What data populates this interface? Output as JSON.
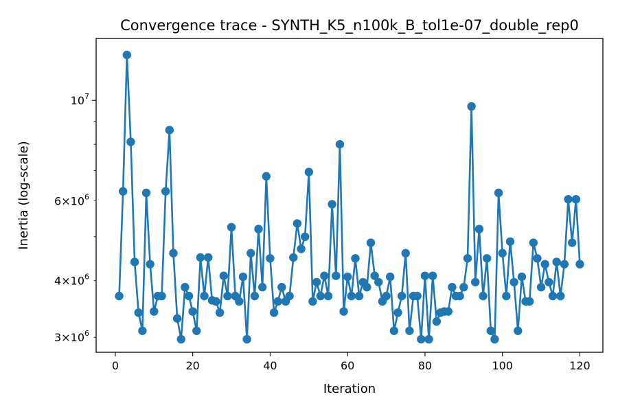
{
  "chart_data": {
    "type": "line",
    "title": "Convergence trace - SYNTH_K5_n100k_B_tol1e-07_double_rep0",
    "xlabel": "Iteration",
    "ylabel": "Inertia (log-scale)",
    "yscale": "log",
    "xlim": [
      -4.95,
      125.95
    ],
    "ylim": [
      2780000,
      13700000
    ],
    "x_ticks": [
      0,
      20,
      40,
      60,
      80,
      100,
      120
    ],
    "x_tick_labels": [
      "0",
      "20",
      "40",
      "60",
      "80",
      "100",
      "120"
    ],
    "y_major_ticks": [
      10000000
    ],
    "y_major_tick_labels": [
      "10^7"
    ],
    "y_minor_ticks": [
      3000000,
      4000000,
      5000000,
      6000000,
      7000000,
      8000000,
      9000000
    ],
    "y_minor_tick_labels": [
      {
        "value": 3000000,
        "label": "3×10^6"
      },
      {
        "value": 4000000,
        "label": "4×10^6"
      },
      {
        "value": 6000000,
        "label": "6×10^6"
      }
    ],
    "grid": false,
    "legend": "none",
    "color": "#1f77b4",
    "marker": "circle",
    "series": [
      {
        "x": [
          1,
          2,
          3,
          4,
          5,
          6,
          7,
          8,
          9,
          10,
          11,
          12,
          13,
          14,
          15,
          16,
          17,
          18,
          19,
          20,
          21,
          22,
          23,
          24,
          25,
          26,
          27,
          28,
          29,
          30,
          31,
          32,
          33,
          34,
          35,
          36,
          37,
          38,
          39,
          40,
          41,
          42,
          43,
          44,
          45,
          46,
          47,
          48,
          49,
          50,
          51,
          52,
          53,
          54,
          55,
          56,
          57,
          58,
          59,
          60,
          61,
          62,
          63,
          64,
          65,
          66,
          67,
          68,
          69,
          70,
          71,
          72,
          73,
          74,
          75,
          76,
          77,
          78,
          79,
          80,
          81,
          82,
          83,
          84,
          85,
          86,
          87,
          88,
          89,
          90,
          91,
          92,
          93,
          94,
          95,
          96,
          97,
          98,
          99,
          100,
          101,
          102,
          103,
          104,
          105,
          106,
          107,
          108,
          109,
          110,
          111,
          112,
          113,
          114,
          115,
          116,
          117,
          118,
          119,
          120
        ],
        "values": [
          3700000,
          6300000,
          12600000,
          8100000,
          4400000,
          3400000,
          3100000,
          6250000,
          4350000,
          3420000,
          3700000,
          3700000,
          6300000,
          8600000,
          4600000,
          3300000,
          2970000,
          3870000,
          3700000,
          3420000,
          3100000,
          4500000,
          3700000,
          4500000,
          3620000,
          3600000,
          3400000,
          4100000,
          3700000,
          5250000,
          3700000,
          3600000,
          4080000,
          2970000,
          4600000,
          3700000,
          5200000,
          3870000,
          6800000,
          4480000,
          3400000,
          3600000,
          3870000,
          3600000,
          3700000,
          4500000,
          5350000,
          4700000,
          5000000,
          6950000,
          3600000,
          3970000,
          3700000,
          4100000,
          3700000,
          5900000,
          4100000,
          8000000,
          3420000,
          4080000,
          3700000,
          4480000,
          3700000,
          3970000,
          3870000,
          4850000,
          4100000,
          3970000,
          3600000,
          3700000,
          4080000,
          3100000,
          3400000,
          3700000,
          4600000,
          3100000,
          3700000,
          3700000,
          2970000,
          4100000,
          2970000,
          4100000,
          3250000,
          3400000,
          3420000,
          3420000,
          3870000,
          3700000,
          3700000,
          3870000,
          4480000,
          9700000,
          3970000,
          5200000,
          3700000,
          4480000,
          3100000,
          2970000,
          6250000,
          4600000,
          3700000,
          4880000,
          3970000,
          3100000,
          4080000,
          3600000,
          3600000,
          4850000,
          4480000,
          3870000,
          4350000,
          3970000,
          3700000,
          4400000,
          3700000,
          4350000,
          6050000,
          4850000,
          6050000,
          4350000
        ]
      }
    ]
  }
}
